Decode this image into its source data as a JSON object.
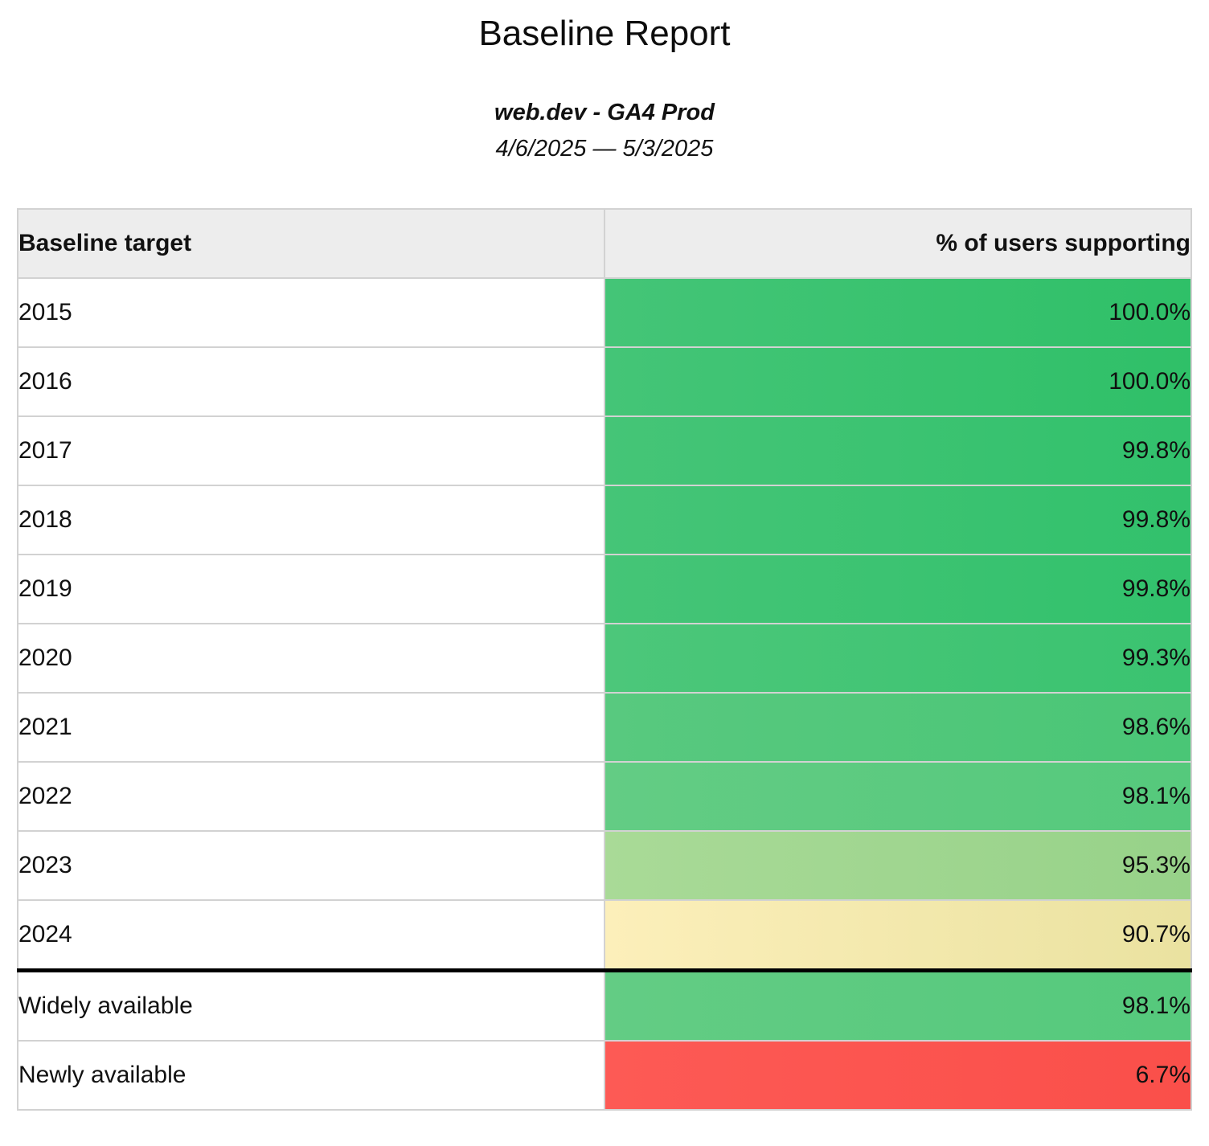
{
  "report": {
    "title": "Baseline Report",
    "property": "web.dev - GA4 Prod",
    "date_range": "4/6/2025 — 5/3/2025"
  },
  "table": {
    "columns": [
      {
        "label": "Baseline target"
      },
      {
        "label": "% of users supporting"
      }
    ],
    "rows": [
      {
        "label": "2015",
        "value": "100.0%",
        "bg_left": "#44c577",
        "bg_right": "#2fc068",
        "section_start": false
      },
      {
        "label": "2016",
        "value": "100.0%",
        "bg_left": "#44c577",
        "bg_right": "#2fc068",
        "section_start": false
      },
      {
        "label": "2017",
        "value": "99.8%",
        "bg_left": "#45c577",
        "bg_right": "#32c16c",
        "section_start": false
      },
      {
        "label": "2018",
        "value": "99.8%",
        "bg_left": "#45c577",
        "bg_right": "#32c16c",
        "section_start": false
      },
      {
        "label": "2019",
        "value": "99.8%",
        "bg_left": "#45c577",
        "bg_right": "#32c16c",
        "section_start": false
      },
      {
        "label": "2020",
        "value": "99.3%",
        "bg_left": "#4cc77a",
        "bg_right": "#3ac370",
        "section_start": false
      },
      {
        "label": "2021",
        "value": "98.6%",
        "bg_left": "#58c97f",
        "bg_right": "#4ac676",
        "section_start": false
      },
      {
        "label": "2022",
        "value": "98.1%",
        "bg_left": "#63cc84",
        "bg_right": "#55c97c",
        "section_start": false
      },
      {
        "label": "2023",
        "value": "95.3%",
        "bg_left": "#a9da97",
        "bg_right": "#97d289",
        "section_start": false
      },
      {
        "label": "2024",
        "value": "90.7%",
        "bg_left": "#fcefba",
        "bg_right": "#eae2a0",
        "section_start": false
      },
      {
        "label": "Widely available",
        "value": "98.1%",
        "bg_left": "#63cc84",
        "bg_right": "#55c97c",
        "section_start": true
      },
      {
        "label": "Newly available",
        "value": "6.7%",
        "bg_left": "#fd5a55",
        "bg_right": "#fa4f4a",
        "section_start": false
      }
    ]
  },
  "colors": {
    "header_background": "#ededed",
    "grid_border": "#d2d2d2",
    "section_divider": "#000000",
    "good": "#2fc068",
    "warn": "#f0e6aa",
    "bad": "#fa4f4a"
  }
}
